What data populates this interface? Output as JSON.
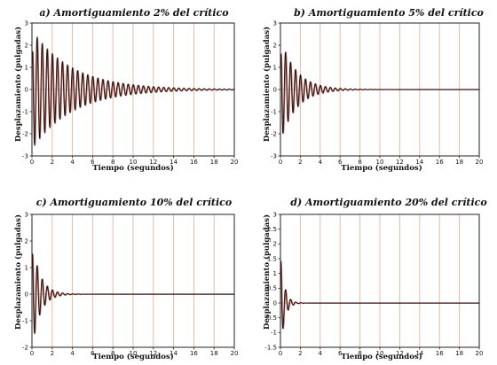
{
  "chart_data": [
    {
      "type": "line",
      "title": "a) Amortiguamiento 2% del crítico",
      "xlabel": "Tiempo (segundos)",
      "ylabel": "Desplazamiento (pulgadas)",
      "xlim": [
        0,
        20
      ],
      "ylim": [
        -3,
        3
      ],
      "xticks": [
        "0",
        "2",
        "4",
        "6",
        "8",
        "10",
        "12",
        "14",
        "16",
        "18",
        "20"
      ],
      "yticks": [
        "3",
        "2",
        "1",
        "0",
        "-1",
        "-2",
        "-3"
      ],
      "grid": "vertical",
      "series": [
        {
          "amplitude": 2.65,
          "damping_ratio": 0.02,
          "period": 0.5,
          "initial_offset": 1.4
        }
      ]
    },
    {
      "type": "line",
      "title": "b) Amortiguamiento 5% del crítico",
      "xlabel": "Tiempo (segundos)",
      "ylabel": "Desplazamiento (pulgadas)",
      "xlim": [
        0,
        20
      ],
      "ylim": [
        -3,
        3
      ],
      "xticks": [
        "0",
        "2",
        "4",
        "6",
        "8",
        "10",
        "12",
        "14",
        "16",
        "18",
        "20"
      ],
      "yticks": [
        "3",
        "2",
        "1",
        "0",
        "-1",
        "-2",
        "-3"
      ],
      "grid": "vertical",
      "series": [
        {
          "amplitude": 2.3,
          "damping_ratio": 0.05,
          "period": 0.5,
          "initial_offset": 1.4
        }
      ]
    },
    {
      "type": "line",
      "title": "c) Amortiguamiento 10% del crítico",
      "xlabel": "Tiempo (segundos)",
      "ylabel": "Desplazamiento (pulgadas)",
      "xlim": [
        0,
        20
      ],
      "ylim": [
        -2,
        3
      ],
      "xticks": [
        "0",
        "2",
        "4",
        "6",
        "8",
        "10",
        "12",
        "14",
        "16",
        "18",
        "20"
      ],
      "yticks": [
        "3",
        "2",
        "1",
        "0",
        "-1",
        "-2"
      ],
      "grid": "vertical",
      "series": [
        {
          "amplitude": 2.0,
          "damping_ratio": 0.1,
          "period": 0.5,
          "initial_offset": 1.4
        }
      ]
    },
    {
      "type": "line",
      "title": "d) Amortiguamiento 20% del crítico",
      "xlabel": "Tiempo (segundos)",
      "ylabel": "Desplazamiento (pulgadas)",
      "xlim": [
        0,
        20
      ],
      "ylim": [
        -1.5,
        3
      ],
      "xticks": [
        "0",
        "2",
        "4",
        "6",
        "8",
        "10",
        "12",
        "14",
        "16",
        "18",
        "20"
      ],
      "yticks": [
        "3",
        "2.5",
        "2",
        "1.5",
        "1",
        "0.5",
        "0",
        "-0.5",
        "-1",
        "-1.5"
      ],
      "grid": "vertical",
      "series": [
        {
          "amplitude": 1.6,
          "damping_ratio": 0.2,
          "period": 0.5,
          "initial_offset": 1.4
        }
      ]
    }
  ],
  "colors": {
    "curve": "#111111",
    "curve_shadow": "#b03020",
    "grid": "#e6b8a8",
    "axis": "#222222"
  }
}
